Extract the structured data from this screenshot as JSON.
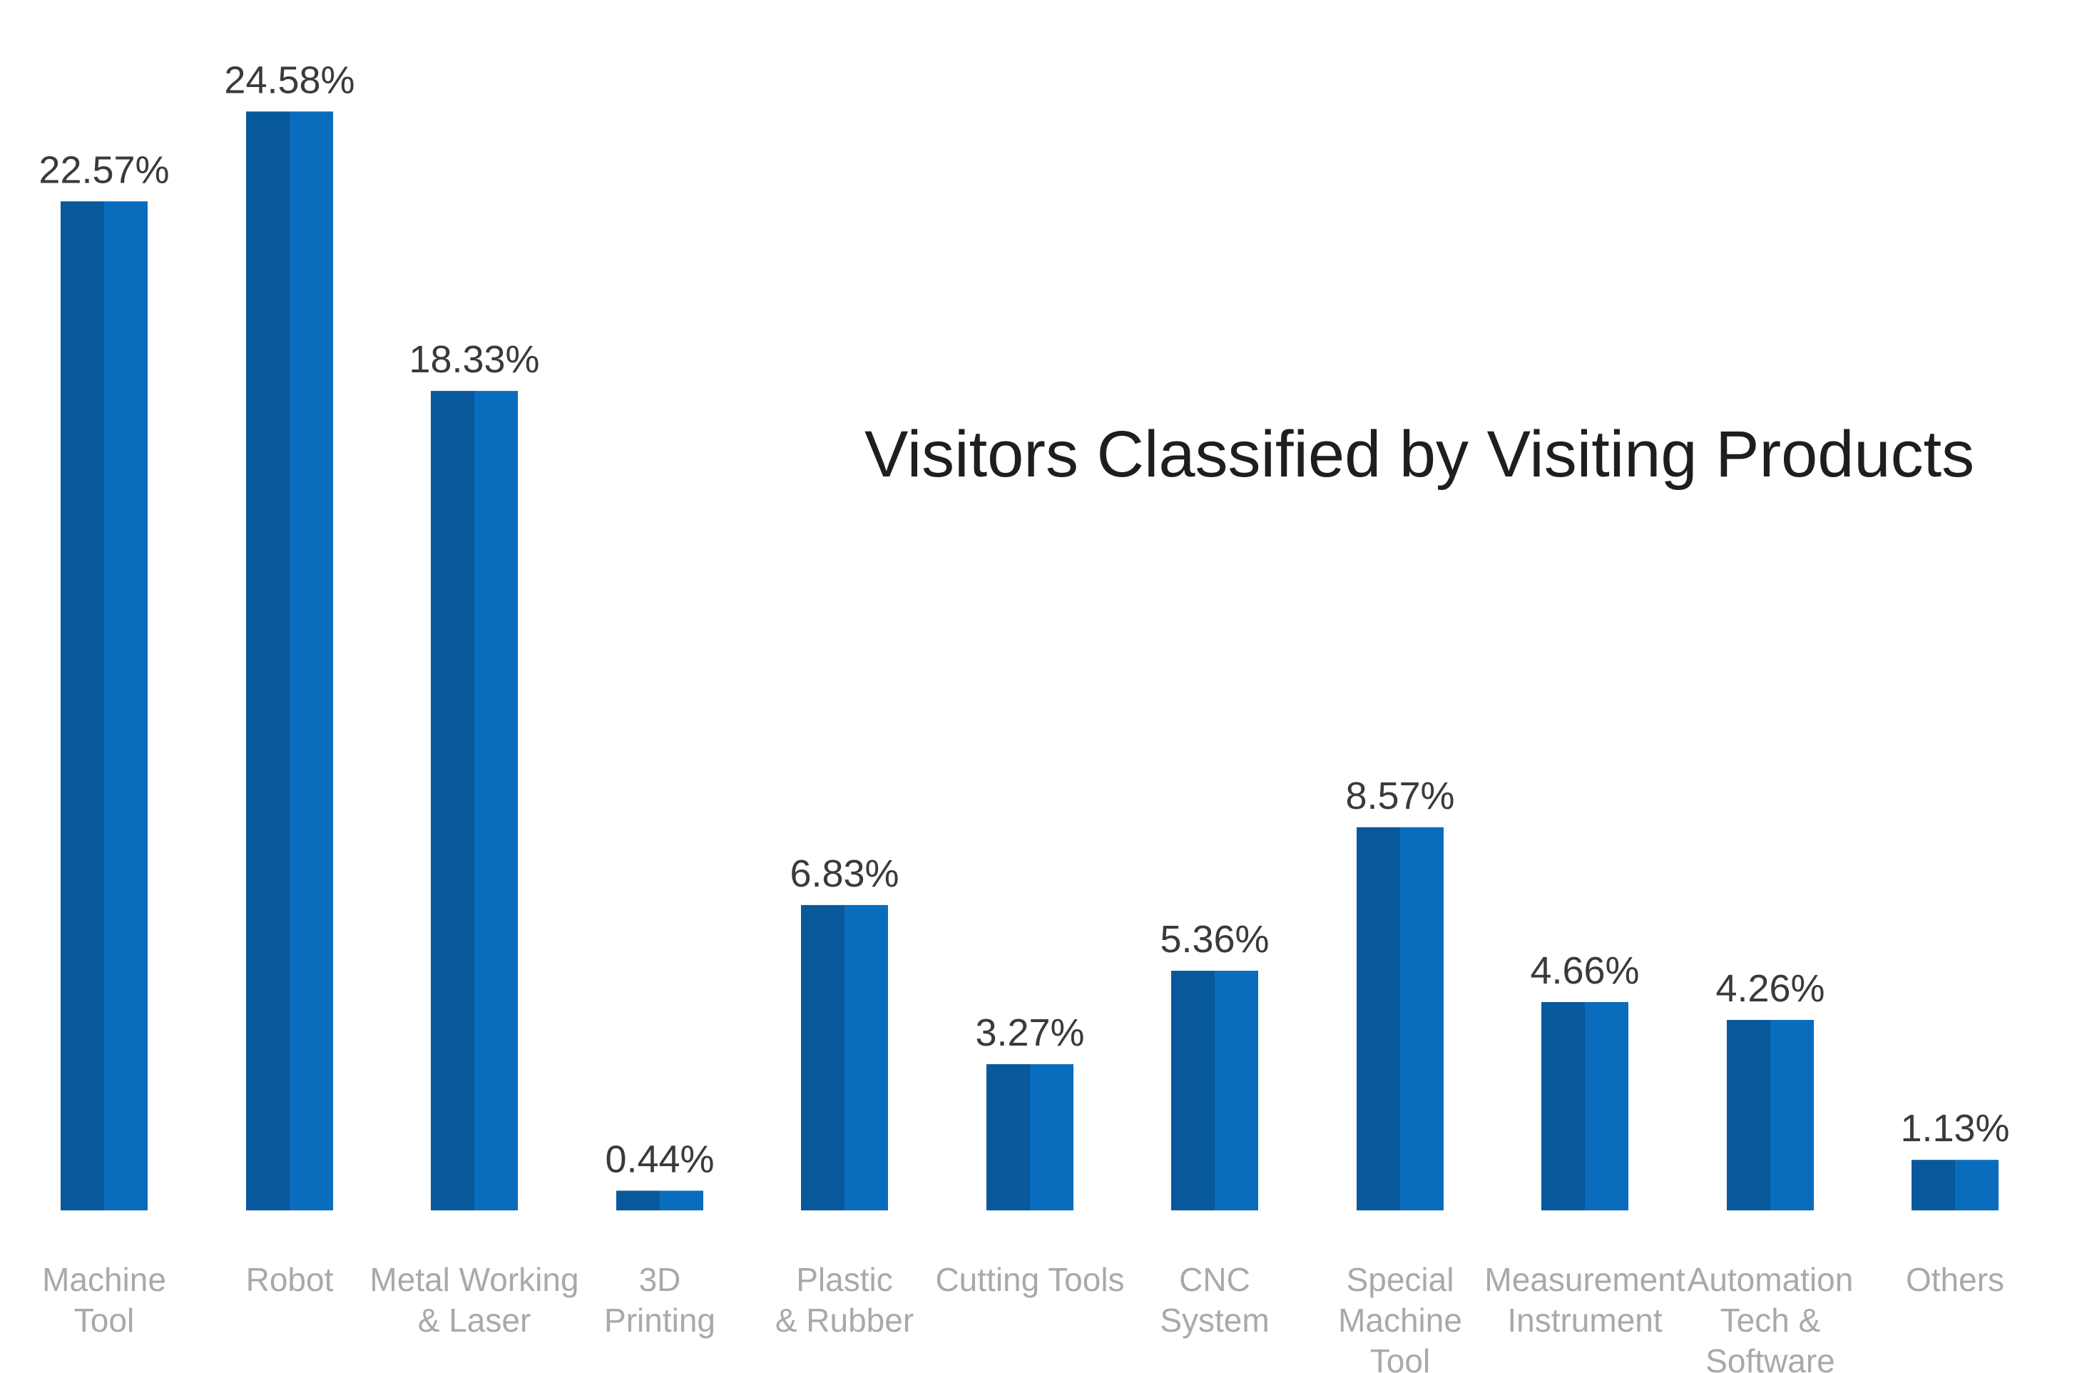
{
  "chart_data": {
    "type": "bar",
    "title": "Visitors Classified by Visiting Products",
    "categories": [
      [
        "Machine",
        "Tool"
      ],
      [
        "Robot"
      ],
      [
        "Metal Working",
        "& Laser"
      ],
      [
        "3D",
        "Printing"
      ],
      [
        "Plastic",
        "& Rubber"
      ],
      [
        "Cutting Tools"
      ],
      [
        "CNC",
        "System"
      ],
      [
        "Special",
        "Machine",
        "Tool"
      ],
      [
        "Measurement",
        "Instrument"
      ],
      [
        "Automation",
        "Tech &",
        "Software"
      ],
      [
        "Others"
      ]
    ],
    "values": [
      22.57,
      24.58,
      18.33,
      0.44,
      6.83,
      3.27,
      5.36,
      8.57,
      4.66,
      4.26,
      1.13
    ],
    "value_labels": [
      "22.57%",
      "24.58%",
      "18.33%",
      "0.44%",
      "6.83%",
      "3.27%",
      "5.36%",
      "8.57%",
      "4.66%",
      "4.26%",
      "1.13%"
    ],
    "ylim": [
      0,
      25
    ],
    "grid": false,
    "legend": "none",
    "colors": {
      "bar_dark": "#08589c",
      "bar_light": "#0a6cbd",
      "title": "#1e1e1e",
      "value_label": "#3a3a3a",
      "category_label": "#a9a9a9"
    }
  }
}
